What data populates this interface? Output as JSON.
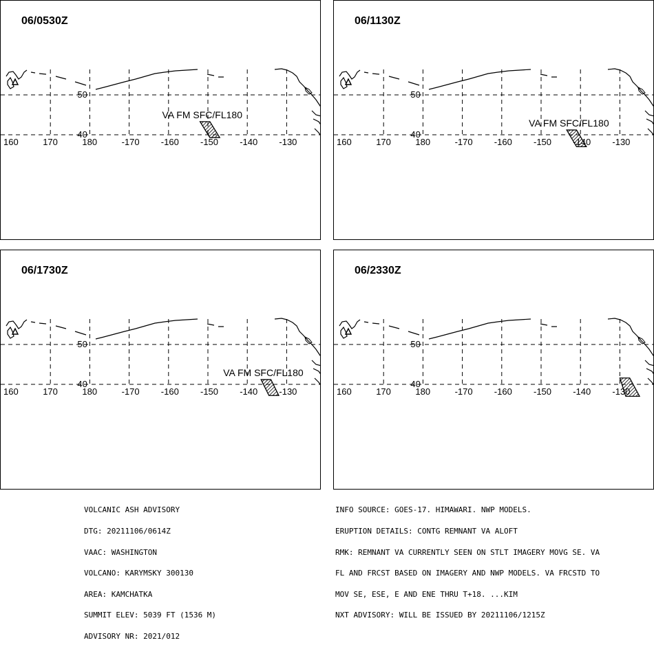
{
  "panels": [
    {
      "time": "06/0530Z",
      "label": "VA FM SFC/FL180",
      "polygon": [
        [
          -152,
          43.3
        ],
        [
          -149.5,
          43.3
        ],
        [
          -147,
          39.3
        ],
        [
          -149.5,
          39.3
        ]
      ]
    },
    {
      "time": "06/1130Z",
      "label": "VA FM SFC/FL180",
      "polygon": [
        [
          -143.5,
          41.2
        ],
        [
          -141,
          41.2
        ],
        [
          -138.5,
          37.0
        ],
        [
          -141,
          37.0
        ]
      ]
    },
    {
      "time": "06/1730Z",
      "label": "VA FM SFC/FL180",
      "polygon": [
        [
          -136.5,
          41.2
        ],
        [
          -134,
          41.2
        ],
        [
          -132,
          37.2
        ],
        [
          -134.5,
          37.2
        ]
      ]
    },
    {
      "time": "06/2330Z",
      "label": "",
      "polygon": [
        [
          -130,
          41.6
        ],
        [
          -127.5,
          41.6
        ],
        [
          -125,
          37.0
        ],
        [
          -128.5,
          37.0
        ]
      ]
    }
  ],
  "lon_ticks": [
    "160",
    "170",
    "180",
    "-170",
    "-160",
    "-150",
    "-140",
    "-130"
  ],
  "lat_ticks": [
    "50",
    "40"
  ],
  "advisory_left": [
    "VOLCANIC ASH ADVISORY",
    "DTG: 20211106/0614Z",
    "VAAC: WASHINGTON",
    "VOLCANO: KARYMSKY 300130",
    "AREA: KAMCHATKA",
    "SUMMIT ELEV: 5039 FT (1536 M)",
    "ADVISORY NR: 2021/012"
  ],
  "advisory_right": [
    "INFO SOURCE: GOES-17. HIMAWARI. NWP MODELS.",
    "ERUPTION DETAILS: CONTG REMNANT VA ALOFT",
    "RMK: REMNANT VA CURRENTLY SEEN ON STLT IMAGERY MOVG SE. VA",
    "FL AND FRCST BASED ON IMAGERY AND NWP MODELS. VA FRCSTD TO",
    "MOV SE, ESE, E AND ENE THRU T+18. ...KIM",
    "NXT ADVISORY: WILL BE ISSUED BY 20211106/1215Z"
  ],
  "colors": {
    "line": "#000000",
    "background": "#ffffff"
  }
}
